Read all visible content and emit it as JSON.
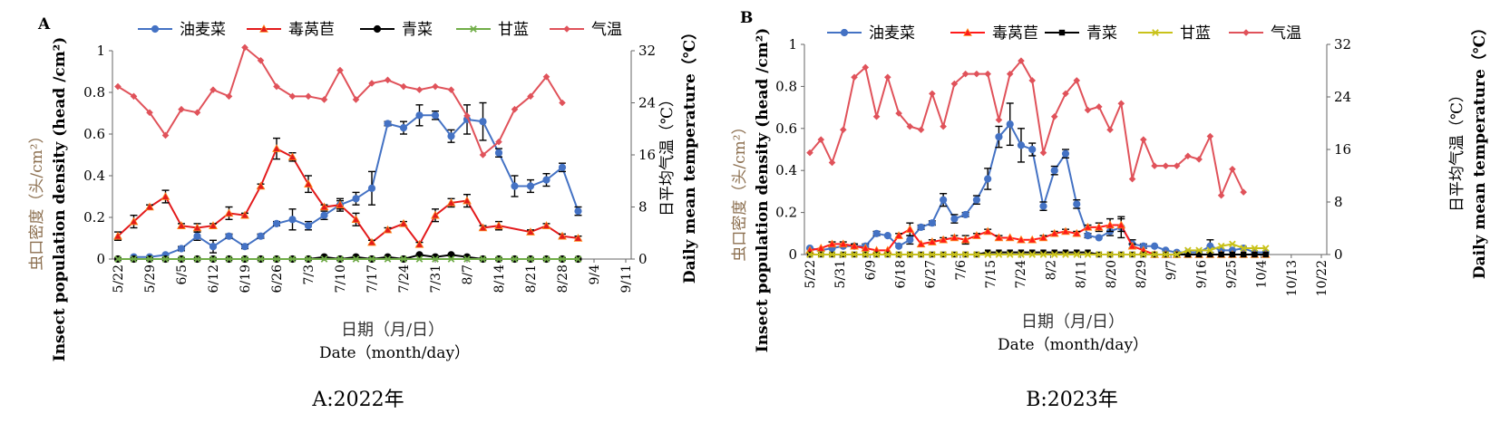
{
  "panels": [
    {
      "letter": "A",
      "caption": "A:2022年",
      "ylabel_left_cn": "虫口密度（头/cm²）",
      "ylabel_left_en": "Insect population density (head /cm²)",
      "ylabel_right_cn": "日平均气温（℃）",
      "ylabel_right_en": "Daily mean temperature（℃）",
      "xlabel_cn": "日期（月/日）",
      "xlabel_en": "Date（month/day）"
    },
    {
      "letter": "B",
      "caption": "B:2023年",
      "ylabel_left_cn": "虫口密度（头/cm²）",
      "ylabel_left_en": "Insect population density (head /cm²)",
      "ylabel_right_cn": "日平均气温（℃）",
      "ylabel_right_en": "Daily mean temperature（℃）",
      "xlabel_cn": "日期（月/日）",
      "xlabel_en": "Date（month/day）"
    }
  ],
  "chart_data": [
    {
      "type": "line",
      "panel": "A",
      "title": "A:2022年",
      "xlabel": "日期（月/日） Date（month/day）",
      "ylabel_left": "虫口密度（头/cm²） Insect population density (head /cm²)",
      "ylabel_right": "日平均气温（℃） Daily mean temperature（℃）",
      "ylim_left": [
        0,
        1
      ],
      "yticks_left": [
        "0",
        "0.2",
        "0.4",
        "0.6",
        "0.8",
        "1"
      ],
      "ylim_right": [
        0,
        32
      ],
      "yticks_right": [
        "0",
        "8",
        "16",
        "24",
        "32"
      ],
      "xticks": [
        "5/22",
        "5/29",
        "6/5",
        "6/12",
        "6/19",
        "6/26",
        "7/3",
        "7/10",
        "7/17",
        "7/24",
        "7/31",
        "8/7",
        "8/14",
        "8/21",
        "8/28",
        "9/4",
        "9/11"
      ],
      "n_points": 33,
      "legend_position": "top",
      "series": [
        {
          "name": "油麦菜",
          "axis": "left",
          "color": "#4472C4",
          "marker": "circle",
          "values": [
            0.01,
            0.01,
            0.02,
            0.05,
            0.11,
            0.06,
            0.11,
            0.06,
            0.11,
            0.17,
            0.19,
            0.16,
            0.21,
            0.26,
            0.29,
            0.34,
            0.65,
            0.63,
            0.69,
            0.69,
            0.59,
            0.67,
            0.66,
            0.51,
            0.35,
            0.35,
            0.38,
            0.44,
            0.23
          ],
          "start_index": 1,
          "errors": [
            0,
            0,
            0,
            0.01,
            0.02,
            0.03,
            0.01,
            0.01,
            0.01,
            0.01,
            0.05,
            0.02,
            0.02,
            0.03,
            0.03,
            0.08,
            0.01,
            0.03,
            0.05,
            0.02,
            0.03,
            0.07,
            0.09,
            0.02,
            0.05,
            0.03,
            0.03,
            0.02,
            0.02
          ]
        },
        {
          "name": "毒莴苣",
          "axis": "left",
          "color": "#E31A1C",
          "marker": "triangle",
          "values": [
            0.11,
            0.18,
            0.25,
            0.3,
            0.16,
            0.15,
            0.16,
            0.22,
            0.21,
            0.35,
            0.53,
            0.49,
            0.36,
            0.25,
            0.26,
            0.19,
            0.08,
            0.14,
            0.17,
            0.07,
            0.21,
            0.27,
            0.28,
            0.15,
            0.16,
            0.13,
            0.16,
            0.11,
            0.1
          ],
          "start_index": 0,
          "x_indices": [
            0,
            1,
            2,
            3,
            4,
            5,
            6,
            7,
            8,
            9,
            10,
            11,
            12,
            13,
            14,
            15,
            16,
            17,
            18,
            19,
            20,
            21,
            22,
            23,
            24,
            26,
            27,
            28,
            29
          ],
          "errors": [
            0.02,
            0.03,
            0.01,
            0.03,
            0.01,
            0.02,
            0.01,
            0.03,
            0.01,
            0.01,
            0.05,
            0.02,
            0.04,
            0.01,
            0.02,
            0.03,
            0.01,
            0.01,
            0.01,
            0.01,
            0.03,
            0.02,
            0.03,
            0.01,
            0.02,
            0.01,
            0.01,
            0.01,
            0.01
          ]
        },
        {
          "name": "青菜",
          "axis": "left",
          "color": "#000000",
          "marker": "circle",
          "values": [
            0,
            0,
            0,
            0,
            0,
            0,
            0,
            0,
            0,
            0,
            0,
            0,
            0,
            0.01,
            0,
            0.01,
            0,
            0.01,
            0,
            0.02,
            0.01,
            0.02,
            0.01,
            0,
            0,
            0,
            0,
            0,
            0,
            0
          ],
          "start_index": 0
        },
        {
          "name": "甘蓝",
          "axis": "left",
          "color": "#70AD47",
          "marker": "x",
          "values": [
            0,
            0,
            0,
            0,
            0,
            0,
            0,
            0,
            0,
            0,
            0,
            0,
            0,
            0,
            0,
            0,
            0,
            0,
            0,
            0,
            0,
            0,
            0,
            0,
            0,
            0,
            0,
            0,
            0,
            0
          ],
          "start_index": 0
        },
        {
          "name": "气温",
          "axis": "right",
          "color": "#E0525A",
          "marker": "diamond",
          "values": [
            26.5,
            25.0,
            22.5,
            19.0,
            23.0,
            22.5,
            26.0,
            25.0,
            32.5,
            30.5,
            26.5,
            25.0,
            25.0,
            24.5,
            29.0,
            24.5,
            27.0,
            27.5,
            26.5,
            26.0,
            26.5,
            26.0,
            22.0,
            16.0,
            18.0,
            23.0,
            25.0,
            28.0,
            24.0
          ],
          "start_index": 0
        }
      ]
    },
    {
      "type": "line",
      "panel": "B",
      "title": "B:2023年",
      "xlabel": "日期（月/日） Date（month/day）",
      "ylabel_left": "虫口密度（头/cm²） Insect population density (head /cm²)",
      "ylabel_right": "日平均气温（℃） Daily mean temperature（℃）",
      "ylim_left": [
        0,
        1
      ],
      "yticks_left": [
        "0",
        "0.2",
        "0.4",
        "0.6",
        "0.8",
        "1"
      ],
      "ylim_right": [
        0,
        32
      ],
      "yticks_right": [
        "0",
        "8",
        "16",
        "24",
        "32"
      ],
      "xticks": [
        "5/22",
        "5/31",
        "6/9",
        "6/18",
        "6/27",
        "7/6",
        "7/15",
        "7/24",
        "8/2",
        "8/11",
        "8/20",
        "8/29",
        "9/7",
        "9/16",
        "9/25",
        "10/4",
        "10/13",
        "10/22"
      ],
      "n_points": 47,
      "legend_position": "top",
      "series": [
        {
          "name": "油麦菜",
          "axis": "left",
          "color": "#4472C4",
          "marker": "circle",
          "values": [
            0.03,
            0.02,
            0.03,
            0.04,
            0.04,
            0.04,
            0.1,
            0.09,
            0.04,
            0.07,
            0.13,
            0.15,
            0.26,
            0.17,
            0.19,
            0.26,
            0.36,
            0.56,
            0.62,
            0.52,
            0.5,
            0.23,
            0.4,
            0.48,
            0.24,
            0.09,
            0.08,
            0.11,
            0.13,
            0.05,
            0.04,
            0.04,
            0.02,
            0.01,
            0.01,
            0.01,
            0.04,
            0.02,
            0.02,
            0.03,
            0.01,
            0.01
          ],
          "start_index": 0,
          "errors": [
            0,
            0,
            0,
            0,
            0.01,
            0.01,
            0.01,
            0,
            0,
            0.02,
            0.01,
            0.01,
            0.03,
            0.02,
            0.01,
            0.02,
            0.05,
            0.05,
            0.1,
            0.08,
            0.03,
            0.02,
            0.02,
            0.02,
            0.02,
            0.01,
            0,
            0.02,
            0.05,
            0.02,
            0.01,
            0,
            0,
            0,
            0,
            0,
            0.03,
            0,
            0,
            0,
            0,
            0
          ]
        },
        {
          "name": "毒莴苣",
          "axis": "left",
          "color": "#FF1A1A",
          "marker": "triangle",
          "values": [
            0.02,
            0.03,
            0.05,
            0.05,
            0.04,
            0.03,
            0.02,
            0.02,
            0.09,
            0.12,
            0.05,
            0.06,
            0.07,
            0.08,
            0.07,
            0.09,
            0.11,
            0.08,
            0.08,
            0.07,
            0.07,
            0.08,
            0.1,
            0.11,
            0.1,
            0.13,
            0.13,
            0.14,
            0.14,
            0.04,
            0.02,
            0,
            0,
            0,
            0,
            0,
            0,
            0,
            0,
            0,
            0,
            0
          ],
          "start_index": 0,
          "errors": [
            0,
            0,
            0.01,
            0.01,
            0.01,
            0,
            0,
            0,
            0.01,
            0.03,
            0,
            0.01,
            0.01,
            0.01,
            0.02,
            0.01,
            0.01,
            0.01,
            0,
            0,
            0,
            0.01,
            0.01,
            0.01,
            0.01,
            0.01,
            0.02,
            0.03,
            0.03,
            0.01,
            0,
            0,
            0,
            0,
            0,
            0,
            0,
            0,
            0,
            0,
            0,
            0
          ]
        },
        {
          "name": "青菜",
          "axis": "left",
          "color": "#000000",
          "marker": "square",
          "values": [
            0,
            0,
            0,
            0,
            0,
            0,
            0,
            0,
            0,
            0,
            0,
            0,
            0,
            0,
            0,
            0,
            0.01,
            0.01,
            0.01,
            0.01,
            0.01,
            0.01,
            0.01,
            0.01,
            0.01,
            0.01,
            0,
            0,
            0,
            0,
            0,
            0,
            0,
            0,
            0,
            0,
            0,
            0,
            0,
            0,
            0,
            0
          ],
          "start_index": 0
        },
        {
          "name": "甘蓝",
          "axis": "left",
          "color": "#C9C21A",
          "marker": "x",
          "values": [
            0,
            0,
            0,
            0,
            0,
            0,
            0,
            0,
            0,
            0,
            0,
            0,
            0,
            0,
            0,
            0,
            0,
            0,
            0,
            0,
            0,
            0,
            0,
            0,
            0,
            0,
            0,
            0,
            0,
            0,
            0,
            0,
            0,
            0,
            0.02,
            0.02,
            0.02,
            0.04,
            0.05,
            0.03,
            0.03,
            0.03
          ],
          "start_index": 0
        },
        {
          "name": "气温",
          "axis": "right",
          "color": "#E0525A",
          "marker": "diamond",
          "values": [
            15.5,
            17.5,
            14.0,
            19.0,
            27.0,
            28.5,
            21.0,
            27.0,
            21.5,
            19.5,
            19.0,
            24.5,
            19.5,
            26.0,
            27.5,
            27.5,
            27.5,
            20.5,
            27.5,
            29.5,
            26.5,
            15.5,
            21.0,
            24.5,
            26.5,
            22.0,
            22.5,
            19.0,
            23.0,
            11.5,
            17.5,
            13.5,
            13.5,
            13.5,
            15.0,
            14.5,
            18.0,
            9.0,
            13.0,
            9.5
          ],
          "start_index": 0
        }
      ]
    }
  ]
}
